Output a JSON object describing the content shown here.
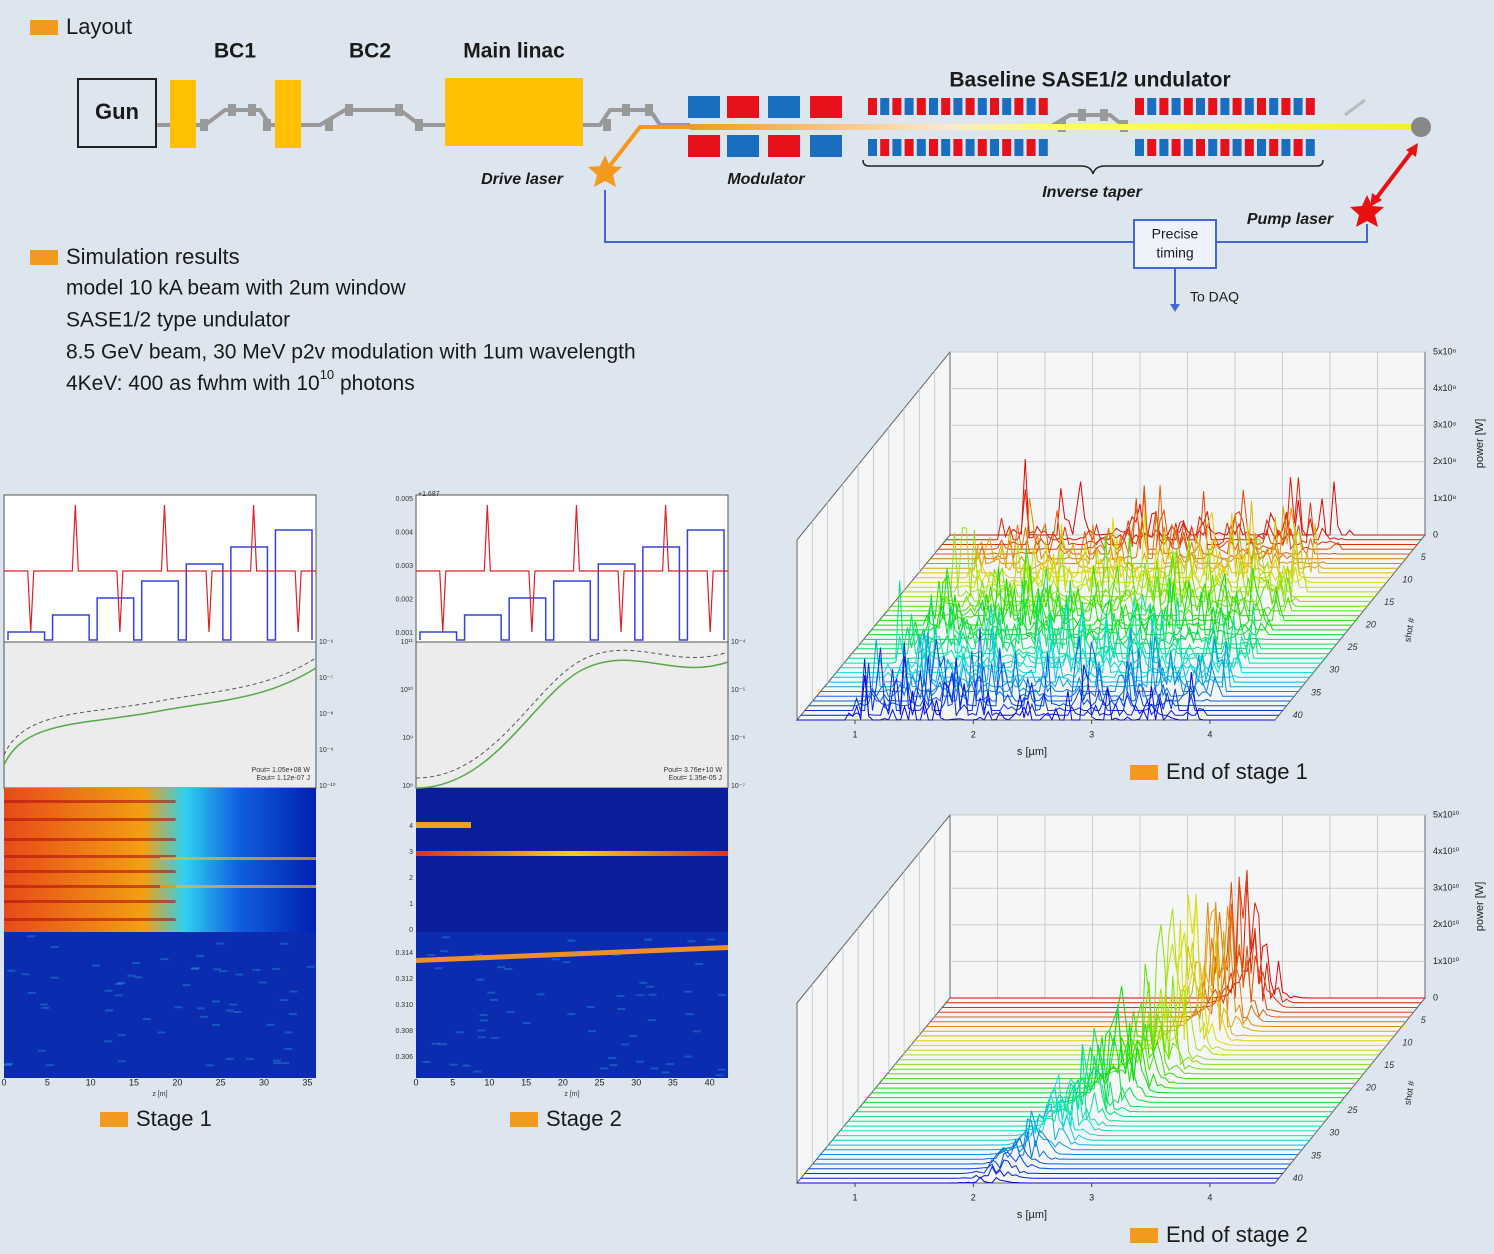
{
  "layout": {
    "heading": "Layout",
    "bc1": "BC1",
    "bc2": "BC2",
    "linac": "Main linac",
    "gun": "Gun",
    "undulator": "Baseline SASE1/2 undulator",
    "drive_laser": "Drive laser",
    "modulator": "Modulator",
    "inverse_taper": "Inverse taper",
    "pump_laser": "Pump laser",
    "precise_timing": [
      "Precise",
      "timing"
    ],
    "to_daq": "To DAQ"
  },
  "simulation": {
    "heading": "Simulation results",
    "lines": [
      "model 10 kA beam with 2um window",
      "SASE1/2 type undulator",
      "8.5 GeV beam, 30 MeV p2v modulation with 1um wavelength"
    ],
    "last_line": {
      "text": "4KeV: 400 as fwhm with 10",
      "superscript": "10",
      "suffix": " photons"
    }
  },
  "stages": [
    {
      "caption": "Stage 1",
      "xlabel": "z [m]",
      "xticks": [
        "0",
        "5",
        "10",
        "15",
        "20",
        "25",
        "30",
        "35"
      ],
      "right_ticks": [
        "10⁻⁶",
        "10⁻⁷",
        "10⁻⁸",
        "10⁻⁹",
        "10⁻¹⁰"
      ],
      "annotation": [
        "Pout= 1.05e+08 W",
        "Eout= 1.12e-07 J"
      ]
    },
    {
      "caption": "Stage 2",
      "xlabel": "z [m]",
      "xticks": [
        "0",
        "5",
        "10",
        "15",
        "20",
        "25",
        "30",
        "35",
        "40"
      ],
      "offset": "+1.687",
      "k_ticks": [
        "0.005",
        "0.004",
        "0.003",
        "0.002",
        "0.001"
      ],
      "p_ticks": [
        "10¹¹",
        "10¹⁰",
        "10⁹",
        "10⁸"
      ],
      "s_ticks": [
        "4",
        "3",
        "2",
        "1",
        "0"
      ],
      "lambda_ticks": [
        "0.314",
        "0.312",
        "0.310",
        "0.308",
        "0.306"
      ],
      "right_ticks": [
        "10⁻⁴",
        "10⁻⁵",
        "10⁻⁶",
        "10⁻⁷"
      ],
      "annotation": [
        "Pout= 3.76e+10 W",
        "Eout= 1.35e-05 J"
      ]
    }
  ],
  "waterfalls": [
    {
      "caption": "End of stage 1",
      "zlabel": "power [W]",
      "ylabel": "shot #",
      "xlabel": "s [µm]",
      "zticks": [
        "0",
        "1x10⁸",
        "2x10⁸",
        "3x10⁸",
        "4x10⁸",
        "5x10⁸"
      ],
      "yticks": [
        "5",
        "10",
        "15",
        "20",
        "25",
        "30",
        "35",
        "40"
      ],
      "xticks": [
        "1",
        "2",
        "3",
        "4"
      ]
    },
    {
      "caption": "End of stage 2",
      "zlabel": "power [W]",
      "ylabel": "shot #",
      "xlabel": "s [µm]",
      "zticks": [
        "0",
        "1x10¹⁰",
        "2x10¹⁰",
        "3x10¹⁰",
        "4x10¹⁰",
        "5x10¹⁰"
      ],
      "yticks": [
        "5",
        "10",
        "15",
        "20",
        "25",
        "30",
        "35",
        "40"
      ],
      "xticks": [
        "1",
        "2",
        "3",
        "4"
      ]
    }
  ]
}
